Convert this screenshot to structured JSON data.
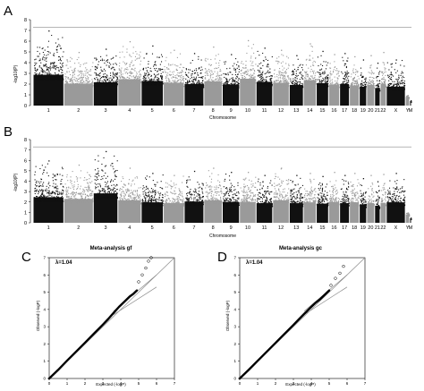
{
  "chart_data": [
    {
      "panel": "A",
      "type": "scatter",
      "kind": "manhattan",
      "title": "",
      "xlabel": "Chromosome",
      "ylabel": "-log10(P)",
      "ylim": [
        0,
        8
      ],
      "yticks": [
        0,
        1,
        2,
        3,
        4,
        5,
        6,
        7,
        8
      ],
      "threshold": 7.3,
      "colors": [
        "#111111",
        "#9a9a9a"
      ],
      "categories": [
        "1",
        "2",
        "3",
        "4",
        "5",
        "6",
        "7",
        "8",
        "9",
        "10",
        "11",
        "12",
        "13",
        "14",
        "15",
        "16",
        "17",
        "18",
        "19",
        "20",
        "21",
        "22",
        "X",
        "Y",
        "M"
      ],
      "width_weights": [
        2.5,
        2.4,
        2.0,
        1.9,
        1.8,
        1.7,
        1.6,
        1.5,
        1.4,
        1.35,
        1.35,
        1.35,
        1.15,
        1.05,
        1.0,
        0.9,
        0.8,
        0.8,
        0.6,
        0.65,
        0.45,
        0.5,
        1.55,
        0.35,
        0.15
      ],
      "peaks": [
        7.0,
        5.0,
        5.3,
        6.0,
        5.6,
        5.2,
        4.9,
        5.5,
        4.8,
        6.1,
        5.4,
        5.2,
        4.7,
        5.8,
        5.1,
        4.8,
        4.9,
        4.6,
        4.3,
        4.7,
        4.0,
        5.0,
        4.3,
        1.0,
        0.5
      ]
    },
    {
      "panel": "B",
      "type": "scatter",
      "kind": "manhattan",
      "title": "",
      "xlabel": "Chromosome",
      "ylabel": "-log10(P)",
      "ylim": [
        0,
        8
      ],
      "yticks": [
        0,
        1,
        2,
        3,
        4,
        5,
        6,
        7,
        8
      ],
      "threshold": 7.3,
      "colors": [
        "#111111",
        "#9a9a9a"
      ],
      "categories": [
        "1",
        "2",
        "3",
        "4",
        "5",
        "6",
        "7",
        "8",
        "9",
        "10",
        "11",
        "12",
        "13",
        "14",
        "15",
        "16",
        "17",
        "18",
        "19",
        "20",
        "21",
        "22",
        "X",
        "Y",
        "M"
      ],
      "width_weights": [
        2.5,
        2.4,
        2.0,
        1.9,
        1.8,
        1.7,
        1.6,
        1.5,
        1.4,
        1.35,
        1.35,
        1.35,
        1.15,
        1.05,
        1.0,
        0.9,
        0.8,
        0.8,
        0.6,
        0.65,
        0.45,
        0.5,
        1.55,
        0.35,
        0.15
      ],
      "peaks": [
        6.0,
        5.6,
        6.9,
        5.3,
        4.8,
        4.6,
        5.0,
        5.3,
        4.9,
        4.9,
        4.6,
        5.3,
        4.6,
        4.8,
        4.5,
        4.9,
        4.6,
        4.8,
        4.3,
        4.6,
        4.0,
        4.7,
        4.8,
        1.0,
        0.5
      ]
    },
    {
      "panel": "C",
      "type": "line",
      "kind": "qq",
      "title": "Meta-analysis gf",
      "annotation": "λ=1.04",
      "xlabel": "Expected (-logP)",
      "ylabel": "Observed (-logP)",
      "xlim": [
        0,
        7
      ],
      "ylim": [
        0,
        7
      ],
      "xticks": [
        0,
        1,
        2,
        3,
        4,
        5,
        6,
        7
      ],
      "yticks": [
        0,
        1,
        2,
        3,
        4,
        5,
        6,
        7
      ],
      "series": [
        {
          "x": [
            0,
            0.5,
            1,
            1.5,
            2,
            2.5,
            3,
            3.3,
            3.6,
            3.9,
            4.2,
            4.5,
            4.7,
            4.9
          ],
          "y": [
            0,
            0.5,
            1.03,
            1.55,
            2.07,
            2.6,
            3.12,
            3.45,
            3.8,
            4.15,
            4.45,
            4.75,
            4.9,
            5.1
          ]
        },
        {
          "x": [
            5.0,
            5.2,
            5.4,
            5.55,
            5.7
          ],
          "y": [
            5.6,
            6.0,
            6.4,
            6.8,
            7.0
          ]
        }
      ],
      "reference_lines": [
        {
          "x": [
            0,
            7
          ],
          "y": [
            0,
            7
          ]
        },
        {
          "x": [
            3.6,
            6.0
          ],
          "y": [
            3.9,
            6.0
          ]
        },
        {
          "x": [
            3.6,
            6.0
          ],
          "y": [
            3.7,
            5.3
          ]
        }
      ]
    },
    {
      "panel": "D",
      "type": "line",
      "kind": "qq",
      "title": "Meta-analysis gc",
      "annotation": "λ=1.04",
      "xlabel": "Expected (-logP)",
      "ylabel": "Observed (-logP)",
      "xlim": [
        0,
        7
      ],
      "ylim": [
        0,
        7
      ],
      "xticks": [
        0,
        1,
        2,
        3,
        4,
        5,
        6,
        7
      ],
      "yticks": [
        0,
        1,
        2,
        3,
        4,
        5,
        6,
        7
      ],
      "series": [
        {
          "x": [
            0,
            0.5,
            1,
            1.5,
            2,
            2.5,
            3,
            3.3,
            3.6,
            3.9,
            4.2,
            4.5,
            4.8,
            5.0
          ],
          "y": [
            0,
            0.5,
            1.02,
            1.54,
            2.06,
            2.58,
            3.1,
            3.42,
            3.74,
            4.05,
            4.35,
            4.6,
            4.9,
            5.1
          ]
        },
        {
          "x": [
            5.1,
            5.35,
            5.6,
            5.8
          ],
          "y": [
            5.4,
            5.8,
            6.1,
            6.5
          ]
        }
      ],
      "reference_lines": [
        {
          "x": [
            0,
            7
          ],
          "y": [
            0,
            7
          ]
        },
        {
          "x": [
            3.6,
            6.0
          ],
          "y": [
            3.9,
            6.0
          ]
        },
        {
          "x": [
            3.6,
            6.0
          ],
          "y": [
            3.7,
            5.3
          ]
        }
      ]
    }
  ]
}
